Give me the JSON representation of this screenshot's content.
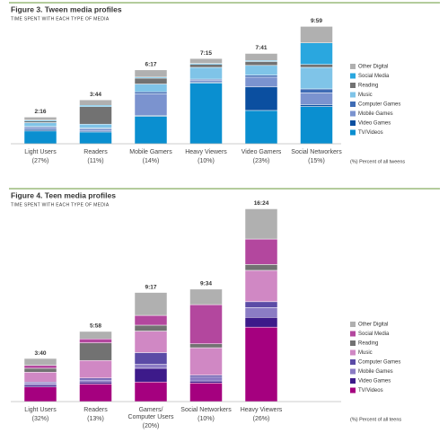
{
  "chart_data": [
    {
      "type": "stacked-bar",
      "title": "Figure 3. Tween media profiles",
      "subtitle": "TIME SPENT WITH EACH TYPE OF MEDIA",
      "categories": [
        "Light Users",
        "Readers",
        "Mobile Gamers",
        "Heavy Viewers",
        "Video Gamers",
        "Social Networkers"
      ],
      "shares": [
        "(27%)",
        "(11%)",
        "(14%)",
        "(10%)",
        "(23%)",
        "(15%)"
      ],
      "values": [
        136,
        224,
        377,
        435,
        461,
        599
      ],
      "value_labels": [
        "2:16",
        "3:44",
        "6:17",
        "7:15",
        "7:41",
        "9:59"
      ],
      "note": "(%) Percent of all tweens",
      "series": [
        {
          "name": "TV/Videos",
          "color": "#0a8fd0",
          "values": [
            65,
            60,
            140,
            310,
            170,
            190
          ]
        },
        {
          "name": "Video Games",
          "color": "#0b4fa0",
          "values": [
            8,
            5,
            5,
            5,
            120,
            10
          ]
        },
        {
          "name": "Mobile Games",
          "color": "#7b93cf",
          "values": [
            10,
            10,
            110,
            10,
            50,
            60
          ]
        },
        {
          "name": "Computer Games",
          "color": "#3f6cb5",
          "values": [
            5,
            5,
            10,
            5,
            10,
            20
          ]
        },
        {
          "name": "Music",
          "color": "#7fc4e8",
          "values": [
            20,
            20,
            40,
            60,
            50,
            110
          ]
        },
        {
          "name": "Reading",
          "color": "#727272",
          "values": [
            8,
            90,
            30,
            15,
            20,
            15
          ]
        },
        {
          "name": "Social Media",
          "color": "#2aa7df",
          "values": [
            5,
            6,
            5,
            5,
            5,
            110
          ]
        },
        {
          "name": "Other Digital",
          "color": "#b0b0b0",
          "values": [
            15,
            28,
            37,
            25,
            36,
            84
          ]
        }
      ]
    },
    {
      "type": "stacked-bar",
      "title": "Figure 4. Teen media profiles",
      "subtitle": "TIME SPENT WITH EACH TYPE OF MEDIA",
      "categories": [
        "Light Users",
        "Readers",
        "Gamers/\nComputer Users",
        "Social Networkers",
        "Heavy Viewers"
      ],
      "shares": [
        "(32%)",
        "(13%)",
        "(20%)",
        "(10%)",
        "(26%)"
      ],
      "values": [
        220,
        358,
        557,
        574,
        984
      ],
      "value_labels": [
        "3:40",
        "5:58",
        "9:17",
        "9:34",
        "16:24"
      ],
      "note": "(%) Percent of all teens",
      "series": [
        {
          "name": "TV/Videos",
          "color": "#a5007f",
          "values": [
            75,
            90,
            100,
            95,
            380
          ]
        },
        {
          "name": "Video Games",
          "color": "#3d1a8a",
          "values": [
            10,
            10,
            70,
            10,
            50
          ]
        },
        {
          "name": "Mobile Games",
          "color": "#8b7cc4",
          "values": [
            10,
            10,
            20,
            20,
            50
          ]
        },
        {
          "name": "Computer Games",
          "color": "#5b4ba6",
          "values": [
            5,
            10,
            60,
            10,
            30
          ]
        },
        {
          "name": "Music",
          "color": "#d088c4",
          "values": [
            50,
            90,
            110,
            140,
            160
          ]
        },
        {
          "name": "Reading",
          "color": "#727272",
          "values": [
            20,
            90,
            30,
            20,
            30
          ]
        },
        {
          "name": "Social Media",
          "color": "#b3479e",
          "values": [
            15,
            20,
            50,
            200,
            130
          ]
        },
        {
          "name": "Other Digital",
          "color": "#b0b0b0",
          "values": [
            35,
            38,
            117,
            79,
            154
          ]
        }
      ]
    }
  ]
}
